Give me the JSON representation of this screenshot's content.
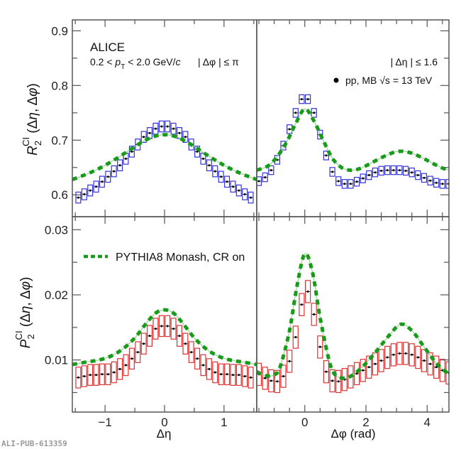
{
  "watermark": "ALI-PUB-613359",
  "annotations": {
    "experiment": "ALICE",
    "pt_range_pre": "0.2 < ",
    "pt_symbol": "p",
    "pt_sub": "T",
    "pt_range_post": " < 2.0 GeV/",
    "pt_unit_c": "c",
    "dphi_cut": "| Δφ | ≤ π",
    "deta_cut": "| Δη |  ≤ 1.6",
    "data_label": "pp, MB √s = 13 TeV",
    "model_label": "PYTHIA8 Monash, CR on"
  },
  "colors": {
    "R2_box": "#3333dd",
    "P2_box": "#dd3333",
    "model": "#1a9a1a",
    "points": "#000000"
  },
  "chart_data": [
    {
      "type": "line",
      "panel": "top-left",
      "title": "",
      "xlabel": "",
      "ylabel": "R2^CI (Δη, Δφ)",
      "xlim": [
        -1.55,
        1.55
      ],
      "ylim": [
        0.56,
        0.92
      ],
      "xticks": [
        -1,
        0,
        1
      ],
      "yticks": [
        0.6,
        0.7,
        0.8,
        0.9
      ],
      "ytick_labels": [
        "0.6",
        "0.7",
        "0.8",
        "0.9"
      ],
      "series": [
        {
          "name": "pp, MB √s = 13 TeV",
          "kind": "data-with-syst-boxes",
          "x": [
            -1.45,
            -1.35,
            -1.25,
            -1.15,
            -1.05,
            -0.95,
            -0.85,
            -0.75,
            -0.65,
            -0.55,
            -0.45,
            -0.35,
            -0.25,
            -0.15,
            -0.05,
            0.05,
            0.15,
            0.25,
            0.35,
            0.45,
            0.55,
            0.65,
            0.75,
            0.85,
            0.95,
            1.05,
            1.15,
            1.25,
            1.35,
            1.45
          ],
          "y": [
            0.595,
            0.601,
            0.608,
            0.615,
            0.624,
            0.633,
            0.643,
            0.654,
            0.666,
            0.679,
            0.692,
            0.706,
            0.713,
            0.721,
            0.725,
            0.725,
            0.721,
            0.713,
            0.706,
            0.692,
            0.679,
            0.666,
            0.654,
            0.643,
            0.633,
            0.624,
            0.615,
            0.608,
            0.601,
            0.595
          ],
          "syst": 0.01
        },
        {
          "name": "PYTHIA8 Monash, CR on",
          "kind": "dashed-line",
          "x": [
            -1.55,
            -1.4,
            -1.2,
            -1.0,
            -0.8,
            -0.6,
            -0.4,
            -0.2,
            0,
            0.2,
            0.4,
            0.6,
            0.8,
            1.0,
            1.2,
            1.4,
            1.55
          ],
          "y": [
            0.628,
            0.634,
            0.643,
            0.654,
            0.667,
            0.681,
            0.695,
            0.706,
            0.71,
            0.706,
            0.695,
            0.681,
            0.667,
            0.654,
            0.643,
            0.634,
            0.628
          ]
        }
      ]
    },
    {
      "type": "line",
      "panel": "top-right",
      "xlabel": "",
      "ylabel": "",
      "xlim": [
        -1.5708,
        4.7124
      ],
      "ylim": [
        0.56,
        0.92
      ],
      "xticks": [
        0,
        2,
        4
      ],
      "series": [
        {
          "name": "pp, MB √s = 13 TeV",
          "kind": "data-with-syst-boxes",
          "x": [
            -1.5,
            -1.3,
            -1.1,
            -0.9,
            -0.7,
            -0.5,
            -0.3,
            -0.1,
            0.1,
            0.3,
            0.5,
            0.7,
            0.9,
            1.1,
            1.3,
            1.5,
            1.7,
            1.9,
            2.1,
            2.3,
            2.5,
            2.7,
            2.9,
            3.1,
            3.3,
            3.5,
            3.7,
            3.9,
            4.1,
            4.3,
            4.5,
            4.7
          ],
          "y": [
            0.625,
            0.632,
            0.645,
            0.664,
            0.69,
            0.72,
            0.75,
            0.775,
            0.775,
            0.75,
            0.71,
            0.672,
            0.642,
            0.625,
            0.62,
            0.62,
            0.624,
            0.63,
            0.636,
            0.641,
            0.644,
            0.645,
            0.645,
            0.645,
            0.644,
            0.641,
            0.636,
            0.631,
            0.626,
            0.622,
            0.62,
            0.62
          ],
          "syst": 0.008
        },
        {
          "name": "PYTHIA8 Monash, CR on",
          "kind": "dashed-line",
          "x": [
            -1.57,
            -1.2,
            -0.9,
            -0.6,
            -0.3,
            0,
            0.3,
            0.6,
            0.9,
            1.2,
            1.5,
            1.8,
            2.1,
            2.4,
            2.7,
            3.0,
            3.3,
            3.6,
            3.9,
            4.2,
            4.5,
            4.71
          ],
          "y": [
            0.645,
            0.653,
            0.67,
            0.696,
            0.73,
            0.757,
            0.735,
            0.7,
            0.667,
            0.65,
            0.645,
            0.648,
            0.656,
            0.665,
            0.673,
            0.679,
            0.679,
            0.674,
            0.666,
            0.657,
            0.649,
            0.645
          ]
        }
      ]
    },
    {
      "type": "line",
      "panel": "bottom-left",
      "xlabel": "Δη",
      "ylabel": "P2^CI (Δη, Δφ)",
      "xlim": [
        -1.55,
        1.55
      ],
      "ylim": [
        0.002,
        0.032
      ],
      "xticks": [
        -1,
        0,
        1
      ],
      "xtick_labels": [
        "−1",
        "0",
        "1"
      ],
      "yticks": [
        0.01,
        0.02,
        0.03
      ],
      "ytick_labels": [
        "0.01",
        "0.02",
        "0.03"
      ],
      "series": [
        {
          "name": "pp, MB √s = 13 TeV",
          "kind": "data-with-syst-boxes",
          "x": [
            -1.45,
            -1.35,
            -1.25,
            -1.15,
            -1.05,
            -0.95,
            -0.85,
            -0.75,
            -0.65,
            -0.55,
            -0.45,
            -0.35,
            -0.25,
            -0.15,
            -0.05,
            0.05,
            0.15,
            0.25,
            0.35,
            0.45,
            0.55,
            0.65,
            0.75,
            0.85,
            0.95,
            1.05,
            1.15,
            1.25,
            1.35,
            1.45
          ],
          "y": [
            0.0073,
            0.0075,
            0.0077,
            0.0077,
            0.0078,
            0.0078,
            0.0081,
            0.0086,
            0.0092,
            0.0102,
            0.0112,
            0.0125,
            0.0137,
            0.0148,
            0.0152,
            0.0152,
            0.0148,
            0.0137,
            0.0125,
            0.0112,
            0.0102,
            0.0092,
            0.0086,
            0.0081,
            0.0078,
            0.0078,
            0.0077,
            0.0077,
            0.0075,
            0.0073
          ],
          "syst": 0.0016
        },
        {
          "name": "PYTHIA8 Monash, CR on",
          "kind": "dashed-line",
          "x": [
            -1.55,
            -1.3,
            -1.1,
            -0.9,
            -0.7,
            -0.5,
            -0.3,
            -0.15,
            0,
            0.15,
            0.3,
            0.5,
            0.7,
            0.9,
            1.1,
            1.3,
            1.55
          ],
          "y": [
            0.0093,
            0.0097,
            0.01,
            0.0106,
            0.0117,
            0.0134,
            0.0157,
            0.0172,
            0.0177,
            0.0172,
            0.0157,
            0.0134,
            0.0117,
            0.0106,
            0.01,
            0.0097,
            0.0093
          ]
        }
      ]
    },
    {
      "type": "line",
      "panel": "bottom-right",
      "xlabel": "Δφ (rad)",
      "ylabel": "",
      "xlim": [
        -1.5708,
        4.7124
      ],
      "ylim": [
        0.002,
        0.032
      ],
      "xticks": [
        0,
        2,
        4
      ],
      "xtick_labels": [
        "0",
        "2",
        "4"
      ],
      "series": [
        {
          "name": "pp, MB √s = 13 TeV",
          "kind": "data-with-syst-boxes",
          "x": [
            -1.5,
            -1.3,
            -1.1,
            -0.9,
            -0.7,
            -0.5,
            -0.3,
            -0.1,
            0.1,
            0.3,
            0.5,
            0.7,
            0.9,
            1.1,
            1.3,
            1.5,
            1.7,
            1.9,
            2.1,
            2.3,
            2.5,
            2.7,
            2.9,
            3.1,
            3.3,
            3.5,
            3.7,
            3.9,
            4.1,
            4.3,
            4.5,
            4.7
          ],
          "y": [
            0.0078,
            0.0072,
            0.0068,
            0.0067,
            0.0075,
            0.0098,
            0.0135,
            0.0185,
            0.0205,
            0.017,
            0.012,
            0.0082,
            0.0068,
            0.0067,
            0.007,
            0.0074,
            0.0079,
            0.0084,
            0.0089,
            0.0094,
            0.0099,
            0.0104,
            0.0108,
            0.011,
            0.011,
            0.0108,
            0.0104,
            0.0099,
            0.0094,
            0.0089,
            0.0084,
            0.008
          ],
          "syst": 0.0017
        },
        {
          "name": "PYTHIA8 Monash, CR on",
          "kind": "dashed-line",
          "x": [
            -1.57,
            -1.3,
            -1.0,
            -0.8,
            -0.5,
            -0.25,
            0,
            0.25,
            0.5,
            0.8,
            1.0,
            1.3,
            1.6,
            2.0,
            2.4,
            2.8,
            3.14,
            3.5,
            3.9,
            4.3,
            4.71
          ],
          "y": [
            0.0082,
            0.0076,
            0.0077,
            0.009,
            0.0145,
            0.0215,
            0.0263,
            0.0235,
            0.0165,
            0.0098,
            0.0077,
            0.0072,
            0.0078,
            0.0095,
            0.0117,
            0.014,
            0.0155,
            0.0145,
            0.012,
            0.0095,
            0.0078
          ]
        }
      ]
    }
  ]
}
